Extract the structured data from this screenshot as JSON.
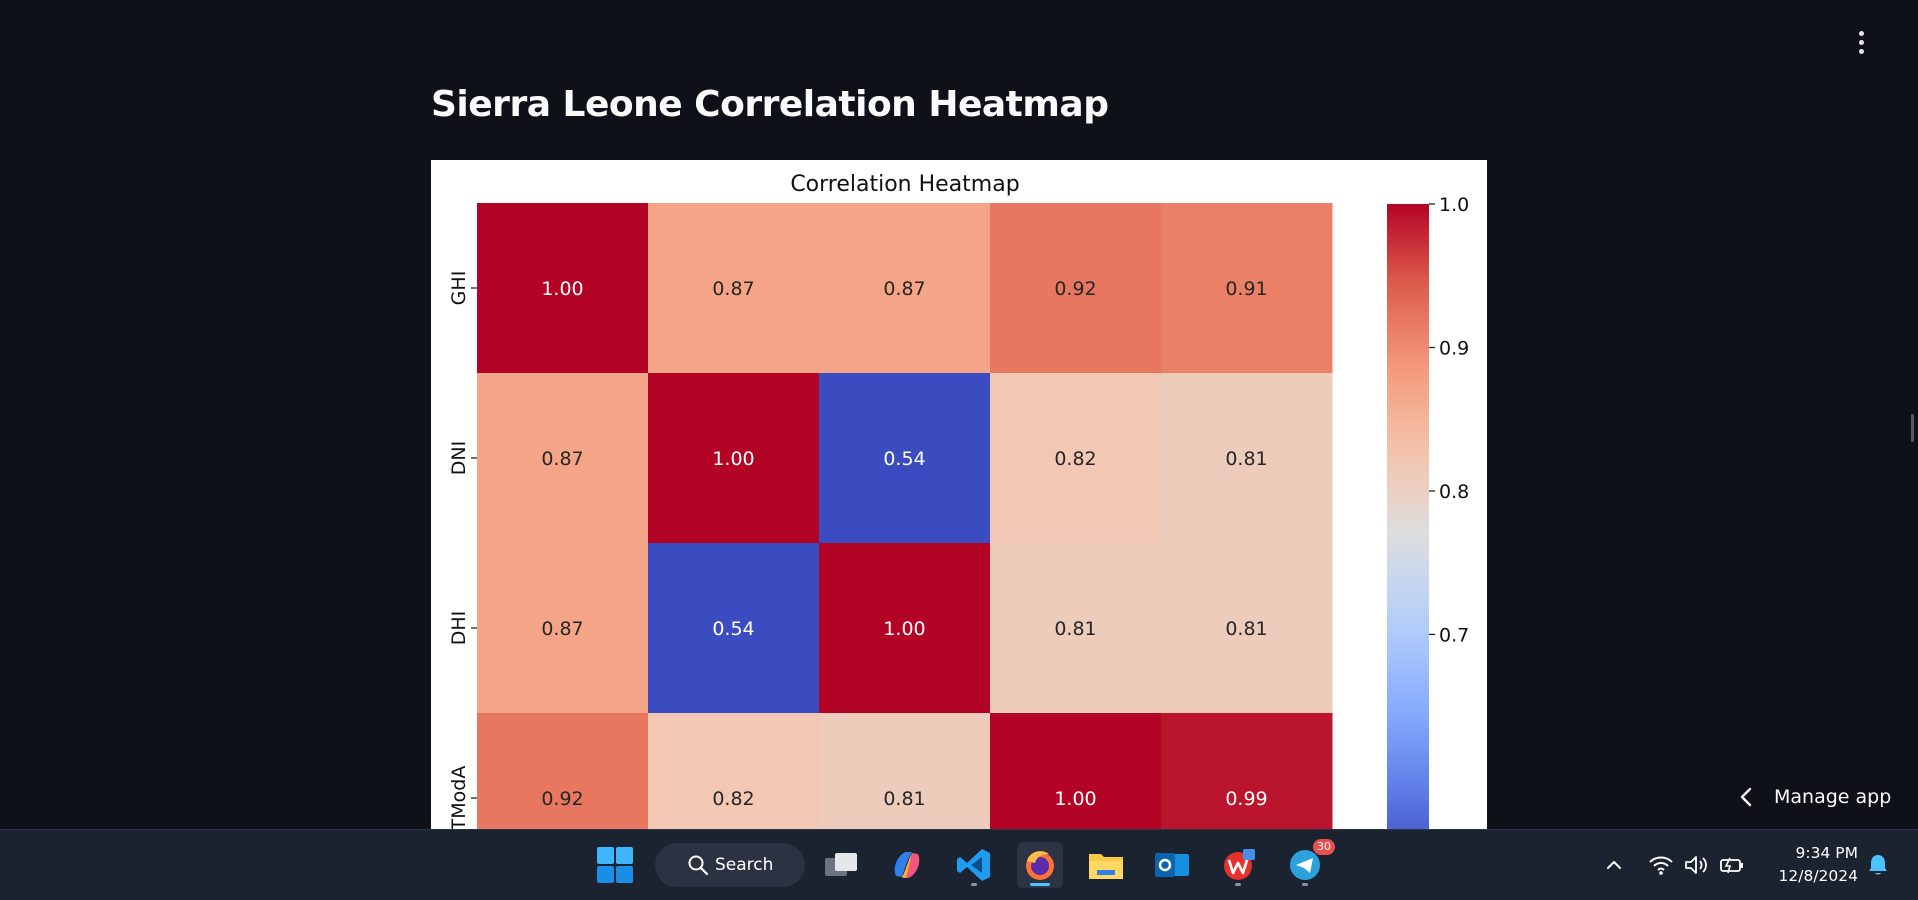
{
  "page": {
    "title": "Sierra Leone Correlation Heatmap"
  },
  "manage_app": {
    "label": "Manage app"
  },
  "taskbar": {
    "search_label": "Search",
    "telegram_badge": "30",
    "clock": {
      "time": "9:34 PM",
      "date": "12/8/2024"
    }
  },
  "colors": {
    "background": "#0e1117",
    "taskbar": "#1b2230",
    "colormap": "coolwarm"
  },
  "chart_data": {
    "type": "heatmap",
    "title": "Correlation Heatmap",
    "rows": [
      "GHI",
      "DNI",
      "DHI",
      "TModA"
    ],
    "values": [
      [
        1.0,
        0.87,
        0.87,
        0.92,
        0.91
      ],
      [
        0.87,
        1.0,
        0.54,
        0.82,
        0.81
      ],
      [
        0.87,
        0.54,
        1.0,
        0.81,
        0.81
      ],
      [
        0.92,
        0.82,
        0.81,
        1.0,
        0.99
      ]
    ],
    "value_format": "0.00",
    "colorbar": {
      "ticks": [
        "1.0",
        "0.9",
        "0.8",
        "0.7"
      ],
      "tick_values": [
        1.0,
        0.9,
        0.8,
        0.7
      ],
      "range": [
        0.54,
        1.0
      ]
    },
    "annotations": true
  }
}
